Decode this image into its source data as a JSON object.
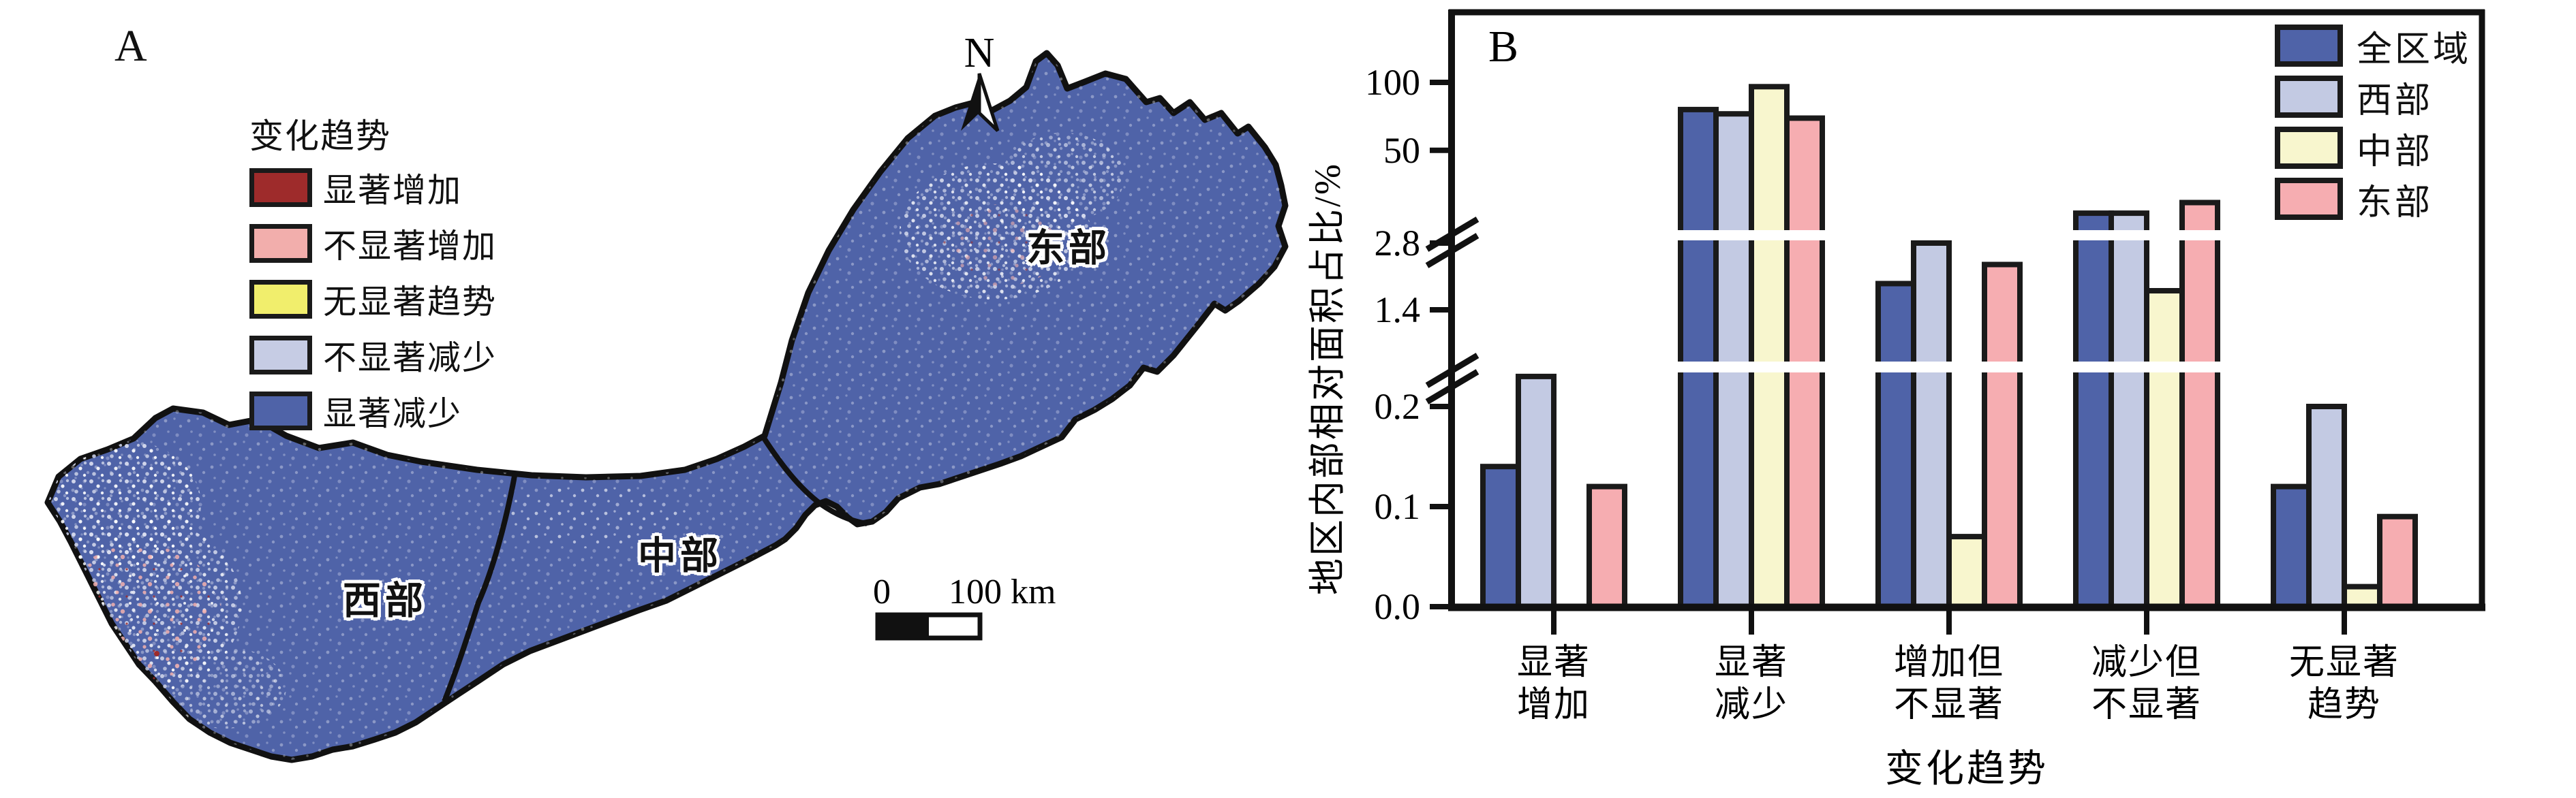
{
  "panel_a": {
    "label": "A",
    "legend": {
      "title": "变化趋势",
      "items": [
        {
          "label": "显著增加",
          "color": "#9E2B2B"
        },
        {
          "label": "不显著增加",
          "color": "#F2AEAC"
        },
        {
          "label": "无显著趋势",
          "color": "#F1EE6C"
        },
        {
          "label": "不显著减少",
          "color": "#C6CCE4"
        },
        {
          "label": "显著减少",
          "color": "#4F63A8"
        }
      ]
    },
    "regions": [
      {
        "name": "西部"
      },
      {
        "name": "中部"
      },
      {
        "name": "东部"
      }
    ],
    "north_label": "N",
    "scalebar": {
      "zero": "0",
      "label": "100 km"
    },
    "map_colors": {
      "base": "#4F63A8",
      "outline": "#111111"
    }
  },
  "panel_b": {
    "label": "B",
    "ylabel": "地区内部相对面积占比/%",
    "xlabel": "变化趋势",
    "legend": [
      {
        "label": "全区域",
        "color": "#4F63A8"
      },
      {
        "label": "西部",
        "color": "#C3CAE3"
      },
      {
        "label": "中部",
        "color": "#F8F6CE"
      },
      {
        "label": "东部",
        "color": "#F6ADB1"
      }
    ]
  },
  "chart_data": {
    "type": "bar",
    "title": "",
    "xlabel": "变化趋势",
    "ylabel": "地区内部相对面积占比/%",
    "unit": "%",
    "categories": [
      "显著增加",
      "显著减少",
      "增加但不显著",
      "减少但不显著",
      "无显著趋势"
    ],
    "categories_two_line": [
      [
        "显著",
        "增加"
      ],
      [
        "显著",
        "减少"
      ],
      [
        "增加但",
        "不显著"
      ],
      [
        "减少但",
        "不显著"
      ],
      [
        "无显著",
        "趋势"
      ]
    ],
    "series": [
      {
        "name": "全区域",
        "color": "#4F63A8",
        "values": [
          0.14,
          81,
          1.95,
          14.5,
          0.12
        ]
      },
      {
        "name": "西部",
        "color": "#C3CAE3",
        "values": [
          0.23,
          78,
          2.8,
          14.5,
          0.2
        ]
      },
      {
        "name": "中部",
        "color": "#F8F6CE",
        "values": [
          0,
          97,
          0.07,
          1.8,
          0.02
        ]
      },
      {
        "name": "东部",
        "color": "#F6ADB1",
        "values": [
          0.12,
          75,
          2.35,
          20.5,
          0.09
        ]
      }
    ],
    "yticks": [
      0,
      0.1,
      0.2,
      1.4,
      2.8,
      50,
      100
    ],
    "ytick_labels": [
      "0.0",
      "0.1",
      "0.2",
      "1.4",
      "2.8",
      "50",
      "100"
    ],
    "axis_breaks": [
      {
        "between": [
          "0.2",
          "1.4"
        ]
      },
      {
        "between": [
          "2.8",
          "50"
        ]
      }
    ],
    "grid": false,
    "legend_position": "top-right",
    "bar_edge_color": "#1a1a1a"
  }
}
